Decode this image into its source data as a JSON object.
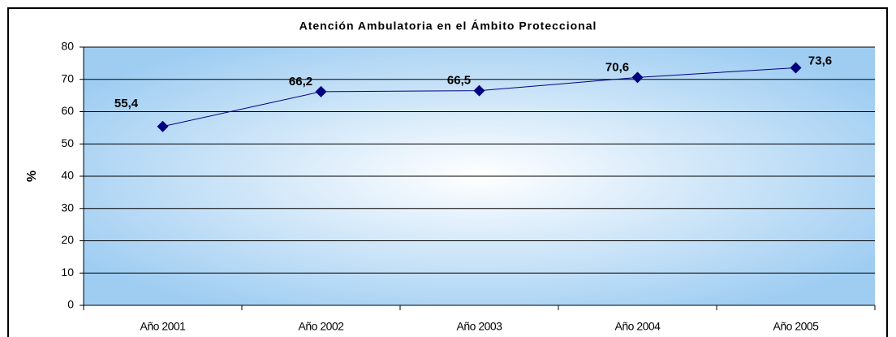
{
  "chart_data": {
    "type": "line",
    "title": "Atención Ambulatoria en el Ámbito Proteccional",
    "y_label": "%",
    "categories": [
      "Año 2001",
      "Año 2002",
      "Año 2003",
      "Año 2004",
      "Año 2005"
    ],
    "series": [
      {
        "name": "Atención Ambulatoria",
        "color": "#000080",
        "values": [
          55.4,
          66.2,
          66.5,
          70.6,
          73.6
        ],
        "value_labels": [
          "55,4",
          "66,2",
          "66,5",
          "70,6",
          "73,6"
        ]
      }
    ],
    "ylim": [
      0,
      80
    ],
    "yticks": [
      0,
      10,
      20,
      30,
      40,
      50,
      60,
      70,
      80
    ],
    "grid": true
  }
}
